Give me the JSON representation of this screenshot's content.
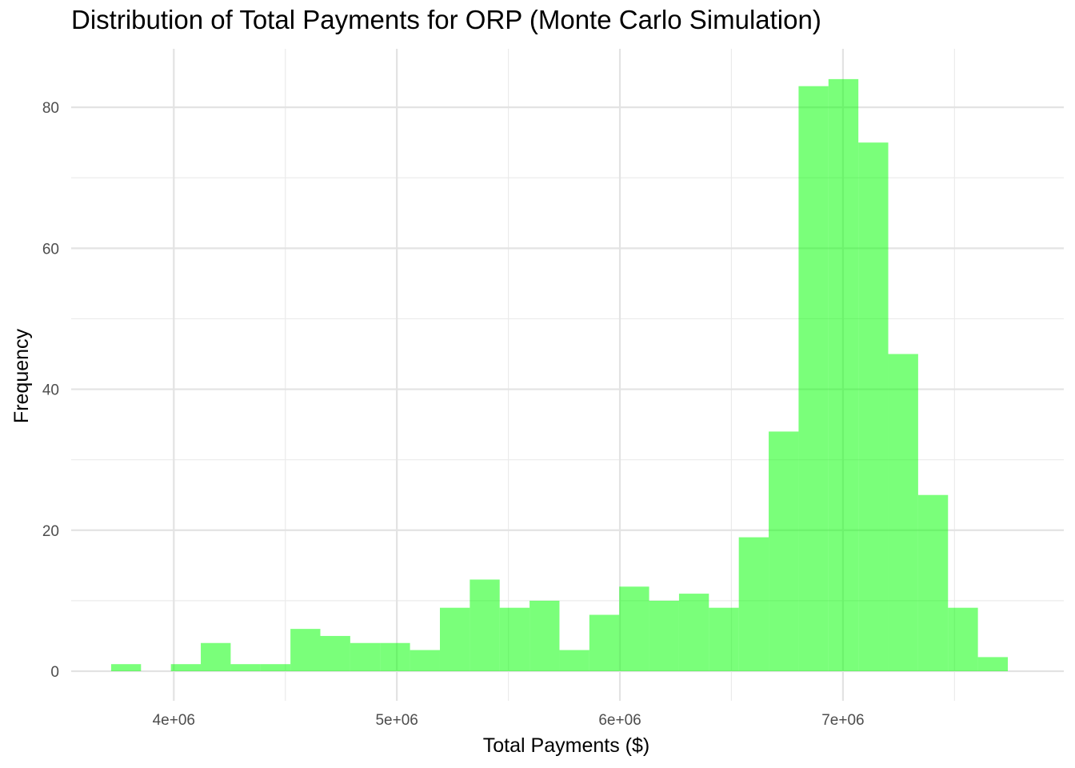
{
  "chart_data": {
    "type": "bar",
    "title": "Distribution of Total Payments for ORP (Monte Carlo Simulation)",
    "xlabel": "Total Payments ($)",
    "ylabel": "Frequency",
    "x_ticks": [
      {
        "value": 4000000,
        "label": "4e+06"
      },
      {
        "value": 5000000,
        "label": "5e+06"
      },
      {
        "value": 6000000,
        "label": "6e+06"
      },
      {
        "value": 7000000,
        "label": "7e+06"
      }
    ],
    "y_ticks": [
      {
        "value": 0,
        "label": "0"
      },
      {
        "value": 20,
        "label": "20"
      },
      {
        "value": 40,
        "label": "40"
      },
      {
        "value": 60,
        "label": "60"
      },
      {
        "value": 80,
        "label": "80"
      }
    ],
    "xlim": [
      3540000,
      7990000
    ],
    "ylim": [
      -4.2,
      88.3
    ],
    "bin_width": 134000,
    "bin_starts": [
      3719000,
      3853000,
      3987000,
      4121000,
      4255000,
      4389000,
      4523000,
      4657000,
      4791000,
      4925000,
      5059000,
      5193000,
      5327000,
      5461000,
      5595000,
      5729000,
      5863000,
      5997000,
      6131000,
      6265000,
      6399000,
      6533000,
      6667000,
      6801000,
      6935000,
      7069000,
      7203000,
      7337000,
      7471000,
      7605000
    ],
    "values": [
      1,
      0,
      1,
      4,
      1,
      1,
      6,
      5,
      4,
      4,
      3,
      9,
      13,
      9,
      10,
      3,
      8,
      12,
      10,
      11,
      9,
      19,
      34,
      83,
      84,
      75,
      45,
      25,
      9,
      2
    ],
    "bar_color": "#00ff00",
    "bar_opacity": 0.52,
    "grid": true,
    "legend": "none"
  }
}
